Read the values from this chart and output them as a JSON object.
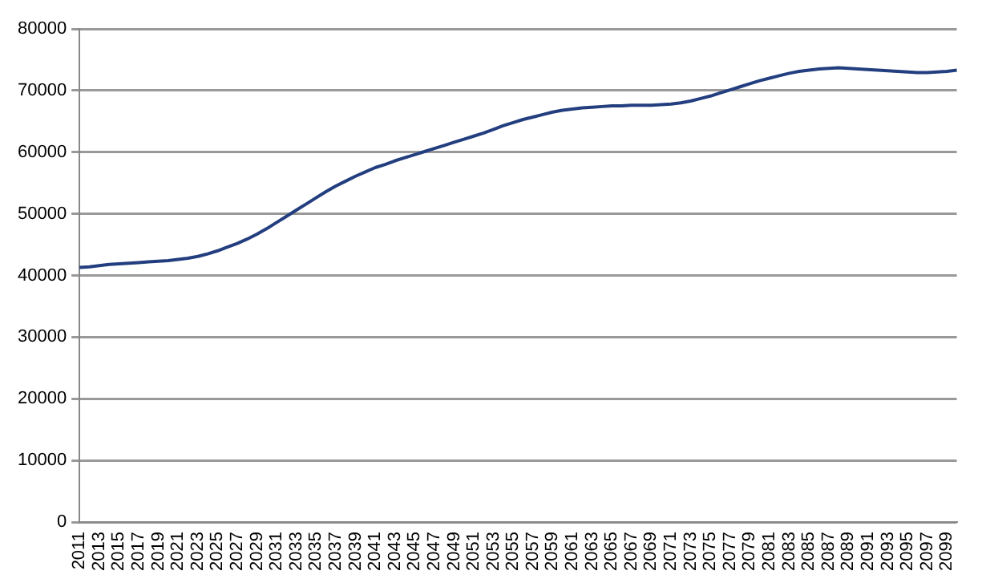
{
  "chart_data": {
    "type": "line",
    "categories": [
      "2011",
      null,
      "2013",
      null,
      "2015",
      null,
      "2017",
      null,
      "2019",
      null,
      "2021",
      null,
      "2023",
      null,
      "2025",
      null,
      "2027",
      null,
      "2029",
      null,
      "2031",
      null,
      "2033",
      null,
      "2035",
      null,
      "2037",
      null,
      "2039",
      null,
      "2041",
      null,
      "2043",
      null,
      "2045",
      null,
      "2047",
      null,
      "2049",
      null,
      "2051",
      null,
      "2053",
      null,
      "2055",
      null,
      "2057",
      null,
      "2059",
      null,
      "2061",
      null,
      "2063",
      null,
      "2065",
      null,
      "2067",
      null,
      "2069",
      null,
      "2071",
      null,
      "2073",
      null,
      "2075",
      null,
      "2077",
      null,
      "2079",
      null,
      "2081",
      null,
      "2083",
      null,
      "2085",
      null,
      "2087",
      null,
      "2089",
      null,
      "2091",
      null,
      "2093",
      null,
      "2095",
      null,
      "2097",
      null,
      "2099",
      null
    ],
    "series": [
      {
        "color": "#233e7f",
        "values": [
          41300,
          41400,
          41600,
          41800,
          41900,
          42000,
          42100,
          42200,
          42300,
          42400,
          42600,
          42800,
          43100,
          43500,
          44000,
          44600,
          45200,
          45900,
          46700,
          47600,
          48600,
          49600,
          50600,
          51600,
          52600,
          53600,
          54500,
          55300,
          56100,
          56800,
          57500,
          58000,
          58600,
          59100,
          59600,
          60100,
          60600,
          61100,
          61600,
          62100,
          62600,
          63100,
          63700,
          64300,
          64800,
          65300,
          65700,
          66100,
          66500,
          66800,
          67000,
          67200,
          67300,
          67400,
          67500,
          67500,
          67600,
          67600,
          67600,
          67700,
          67800,
          68000,
          68300,
          68700,
          69100,
          69600,
          70100,
          70600,
          71100,
          71600,
          72000,
          72400,
          72800,
          73100,
          73300,
          73500,
          73600,
          73700,
          73600,
          73500,
          73400,
          73300,
          73200,
          73100,
          73000,
          72900,
          72900,
          73000,
          73100,
          73300
        ]
      }
    ],
    "ylim": [
      0,
      80000
    ],
    "yticks": [
      0,
      10000,
      20000,
      30000,
      40000,
      50000,
      60000,
      70000,
      80000
    ],
    "grid": "y",
    "legend": false,
    "marker": "none",
    "line_style": "solid"
  }
}
